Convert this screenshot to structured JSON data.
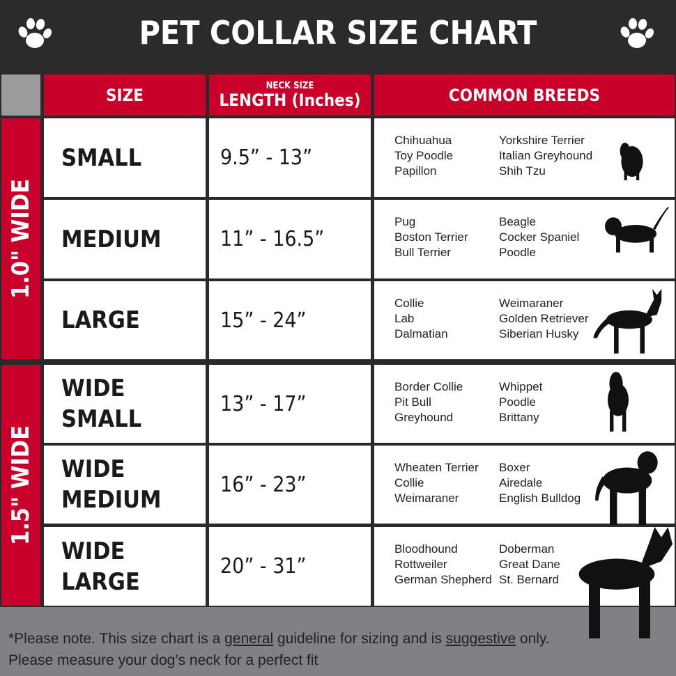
{
  "title": "PET COLLAR SIZE CHART",
  "colors": {
    "header_red": "#c8002a",
    "title_bg": "#2b2b2b",
    "footer_gray": "#808185",
    "corner_gray": "#9a9b9d"
  },
  "headers": {
    "size": "SIZE",
    "neck_size": "NECK SIZE",
    "length": "LENGTH (Inches)",
    "breeds": "COMMON BREEDS"
  },
  "groups": [
    {
      "label": "1.0\" WIDE"
    },
    {
      "label": "1.5\" WIDE"
    }
  ],
  "rows": [
    {
      "size": [
        "SMALL"
      ],
      "length": "9.5” - 13”",
      "breeds_left": [
        "Chihuahua",
        "Toy Poodle",
        "Papillon"
      ],
      "breeds_right": [
        "Yorkshire Terrier",
        "Italian Greyhound",
        "Shih Tzu"
      ],
      "icon": "small-dog-silhouette-icon"
    },
    {
      "size": [
        "MEDIUM"
      ],
      "length": "11” - 16.5”",
      "breeds_left": [
        "Pug",
        "Boston Terrier",
        "Bull Terrier"
      ],
      "breeds_right": [
        "Beagle",
        "Cocker Spaniel",
        "Poodle"
      ],
      "icon": "medium-dog-silhouette-icon"
    },
    {
      "size": [
        "LARGE"
      ],
      "length": "15” - 24”",
      "breeds_left": [
        "Collie",
        "Lab",
        "Dalmatian"
      ],
      "breeds_right": [
        "Weimaraner",
        "Golden Retriever",
        "Siberian Husky"
      ],
      "icon": "large-dog-silhouette-icon"
    },
    {
      "size": [
        "WIDE",
        "SMALL"
      ],
      "length": "13” - 17”",
      "breeds_left": [
        "Border Collie",
        "Pit Bull",
        "Greyhound"
      ],
      "breeds_right": [
        "Whippet",
        "Poodle",
        "Brittany"
      ],
      "icon": "bulldog-silhouette-icon"
    },
    {
      "size": [
        "WIDE",
        "MEDIUM"
      ],
      "length": "16” - 23”",
      "breeds_left": [
        "Wheaten Terrier",
        "Collie",
        "Weimaraner"
      ],
      "breeds_right": [
        "Boxer",
        "Airedale",
        "English Bulldog"
      ],
      "icon": "pitbull-silhouette-icon"
    },
    {
      "size": [
        "WIDE",
        "LARGE"
      ],
      "length": "20” - 31”",
      "breeds_left": [
        "Bloodhound",
        "Rottweiler",
        "German Shepherd"
      ],
      "breeds_right": [
        "Doberman",
        "Great Dane",
        "St. Bernard"
      ],
      "icon": "doberman-silhouette-icon"
    }
  ],
  "note": {
    "p1": "*Please note. This size chart is a ",
    "u1": "general",
    "p2": " guideline for sizing and is ",
    "u2": "suggestive",
    "p3": " only.",
    "line2": "Please measure your dog’s neck for a perfect fit"
  }
}
